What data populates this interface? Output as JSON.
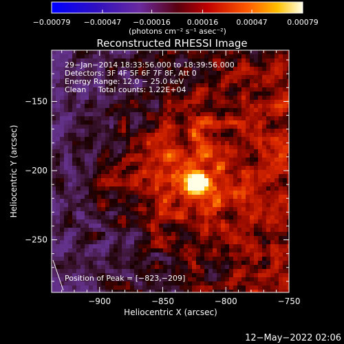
{
  "chart_data": {
    "type": "heatmap",
    "title": "Reconstructed RHESSI Image",
    "xlabel": "Heliocentric X (arcsec)",
    "ylabel": "Heliocentric Y (arcsec)",
    "xlim": [
      -938,
      -750
    ],
    "ylim": [
      -288,
      -113
    ],
    "x_ticks": [
      -900,
      -850,
      -800,
      -750
    ],
    "y_ticks": [
      -150,
      -200,
      -250
    ],
    "x_tick_labels": [
      "−900",
      "−850",
      "−800",
      "−750"
    ],
    "y_tick_labels": [
      "−150",
      "−200",
      "−250"
    ],
    "colorbar": {
      "ticks": [
        -0.00079,
        -0.00047,
        -0.00016,
        0.00016,
        0.00047,
        0.00079
      ],
      "tick_labels": [
        "−0.00079",
        "−0.00047",
        "−0.00016",
        "0.00016",
        "0.00047",
        "0.00079"
      ],
      "label": "(photons cm⁻² s⁻¹ asec⁻²)",
      "range": [
        -0.00079,
        0.00079
      ]
    },
    "annotations": [
      "29−Jan−2014 18:33:56.000 to 18:39:56.000",
      "Detectors: 3F 4F 5F 6F 7F 8F, Att 0",
      "Energy Range: 12.0 − 25.0 keV",
      "Clean     Total counts: 1.22E+04"
    ],
    "peak": {
      "x": -823,
      "y": -209,
      "label": "Position of Peak = [−823,−209]"
    },
    "footer": "12−May−2022 02:06"
  }
}
